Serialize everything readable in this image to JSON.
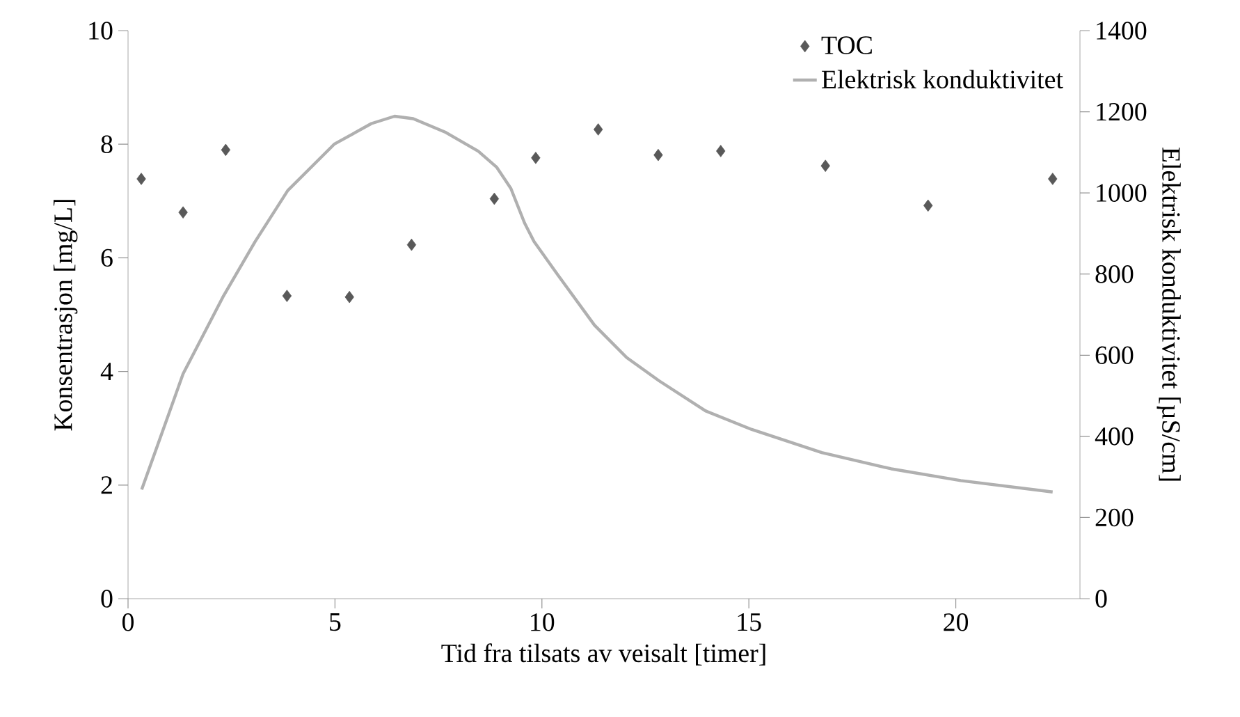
{
  "chart_data": {
    "type": "line",
    "xlabel": "Tid fra tilsats av veisalt [timer]",
    "ylabel": "Konsentrasjon [mg/L]",
    "y2label": "Elektrisk konduktivitet [µS/cm]",
    "xlim": [
      0,
      23
    ],
    "xticks": [
      0,
      5,
      10,
      15,
      20
    ],
    "ylim": [
      0,
      10
    ],
    "yticks": [
      0,
      2,
      4,
      6,
      8,
      10
    ],
    "y2lim": [
      0,
      1400
    ],
    "y2ticks": [
      0,
      200,
      400,
      600,
      800,
      1000,
      1200,
      1400
    ],
    "legend": "top right",
    "series": [
      {
        "name": "TOC",
        "type": "scatter",
        "marker": "diamond",
        "color": "#595959",
        "x": [
          0.32,
          1.33,
          2.36,
          3.84,
          5.35,
          6.85,
          8.85,
          9.85,
          11.36,
          12.81,
          14.32,
          16.85,
          19.33,
          22.34
        ],
        "values": [
          7.39,
          6.8,
          7.9,
          5.33,
          5.31,
          6.23,
          7.04,
          7.76,
          8.26,
          7.81,
          7.88,
          7.62,
          6.92,
          7.39
        ]
      },
      {
        "name": "Elektrisk konduktivitet",
        "type": "line",
        "axis": "y2",
        "line_style": "solid",
        "color": "#b0b0b0",
        "x": [
          0.33,
          0.71,
          1.33,
          2.29,
          3.07,
          3.86,
          4.98,
          5.88,
          6.44,
          6.89,
          7.68,
          8.46,
          8.91,
          9.25,
          9.58,
          9.81,
          10.37,
          11.27,
          12.05,
          12.83,
          13.95,
          15.07,
          16.76,
          18.44,
          20.12,
          22.34
        ],
        "values": [
          269,
          377,
          554,
          743,
          880,
          1006,
          1120,
          1171,
          1189,
          1183,
          1149,
          1103,
          1063,
          1011,
          926,
          880,
          800,
          674,
          594,
          537,
          463,
          417,
          360,
          320,
          291,
          263
        ]
      }
    ]
  }
}
